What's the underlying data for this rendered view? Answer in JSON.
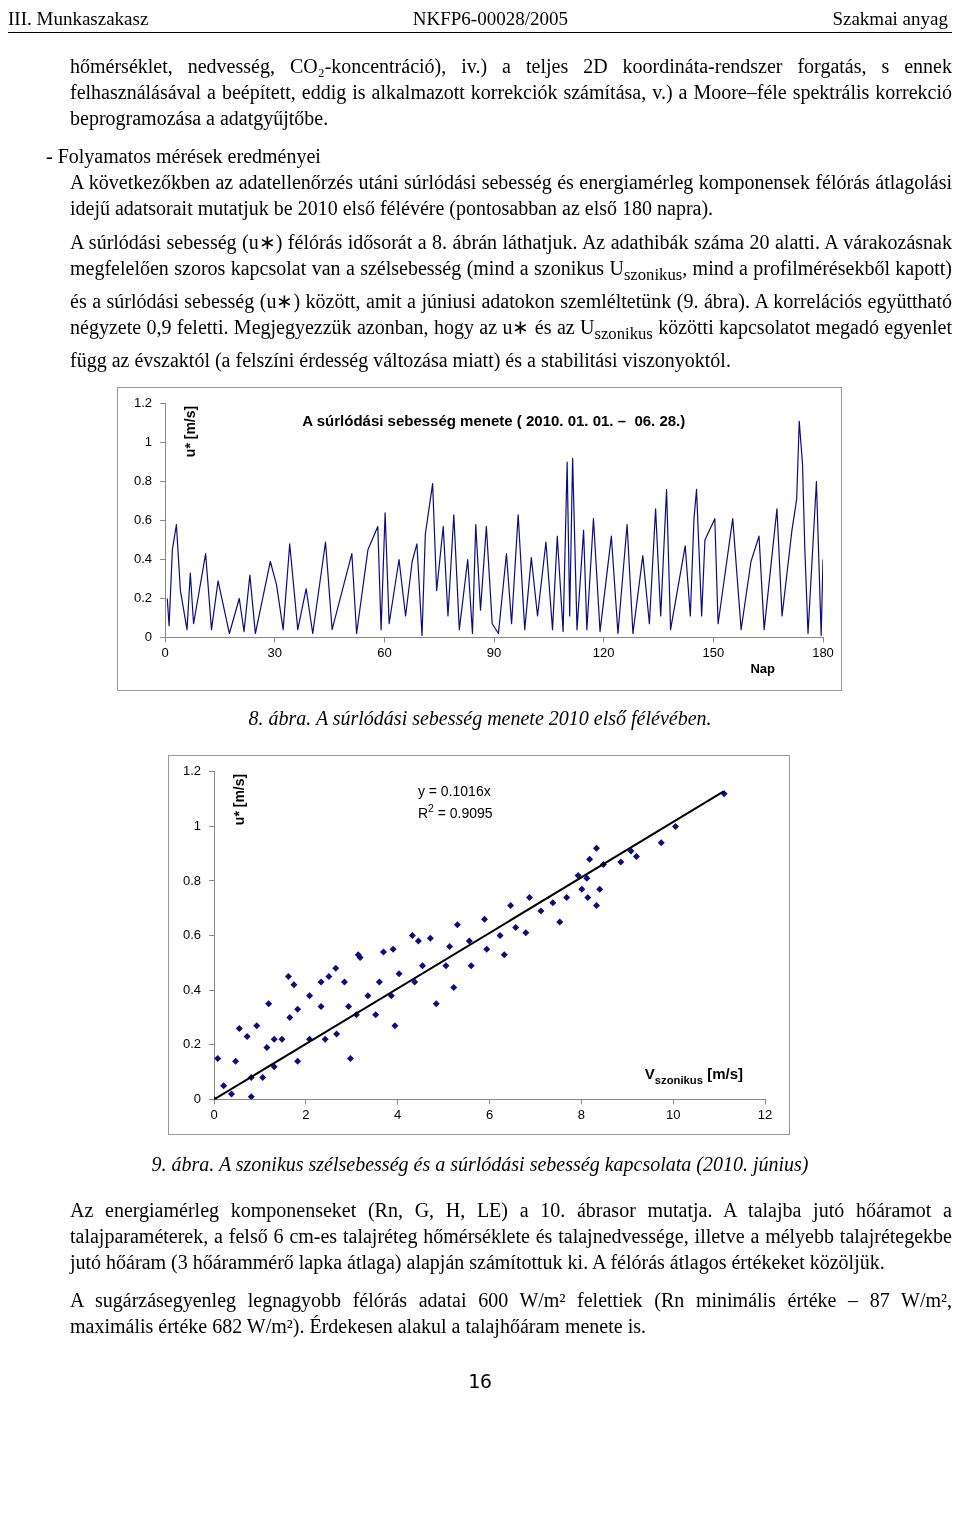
{
  "chart_data": [
    {
      "type": "line",
      "title": "A súrlódási sebesség menete ( 2010. 01. 01. –  06. 28.)",
      "xlabel": "Nap",
      "ylabel": "u* [m/s]",
      "xlim": [
        0,
        180
      ],
      "xticks": [
        0,
        30,
        60,
        90,
        120,
        150,
        180
      ],
      "ylim": [
        0,
        1.2
      ],
      "yticks": [
        0,
        0.2,
        0.4,
        0.6,
        0.8,
        1,
        1.2
      ],
      "grid": false,
      "legend": false,
      "marker": "none",
      "series": [
        {
          "color": "#0c0c80",
          "x": [
            0.6,
            1.1,
            2.0,
            3.1,
            4.2,
            6,
            6.9,
            7.8,
            11.1,
            12.7,
            14.5,
            17.6,
            20.3,
            21.6,
            23.2,
            24.7,
            28.8,
            30.5,
            32.3,
            34.1,
            36.3,
            38.6,
            40.4,
            43.9,
            45.7,
            51.1,
            52.4,
            55.5,
            58.2,
            59.1,
            60.2,
            61.3,
            64.0,
            65.8,
            67.6,
            68.9,
            70.3,
            71.2,
            73.2,
            74.3,
            76.1,
            77.4,
            79.0,
            80.5,
            82.8,
            84.1,
            85.0,
            86.3,
            87.9,
            89.5,
            91.2,
            93.4,
            94.8,
            96.6,
            98.4,
            100.2,
            101.9,
            104.2,
            106,
            107.3,
            108.9,
            110.0,
            110.7,
            111.5,
            112.7,
            114.5,
            115.4,
            117.2,
            119,
            122.1,
            123.9,
            126.4,
            128,
            130.7,
            132.5,
            134.2,
            135.6,
            137.2,
            138.3,
            142.3,
            143.7,
            144.7,
            145.4,
            146.8,
            147.7,
            150.4,
            151.3,
            155.3,
            157.6,
            160.3,
            162.5,
            163.9,
            167.4,
            168.8,
            171.5,
            172.8,
            173.5,
            174.4,
            175,
            175.9,
            178.2,
            179.5,
            180
          ],
          "values": [
            0.2,
            0.06,
            0.45,
            0.58,
            0.24,
            0.04,
            0.33,
            0.07,
            0.43,
            0.04,
            0.29,
            0.02,
            0.2,
            0.03,
            0.32,
            0.02,
            0.39,
            0.27,
            0.04,
            0.48,
            0.04,
            0.25,
            0.02,
            0.49,
            0.04,
            0.43,
            0.02,
            0.45,
            0.57,
            0.04,
            0.64,
            0.07,
            0.4,
            0.11,
            0.39,
            0.48,
            0.01,
            0.53,
            0.79,
            0.24,
            0.57,
            0.11,
            0.63,
            0.04,
            0.4,
            0.02,
            0.58,
            0.14,
            0.57,
            0.07,
            0.02,
            0.43,
            0.07,
            0.63,
            0.04,
            0.41,
            0.11,
            0.49,
            0.04,
            0.52,
            0.03,
            0.9,
            0.11,
            0.92,
            0.04,
            0.55,
            0.04,
            0.61,
            0.03,
            0.52,
            0.02,
            0.58,
            0.02,
            0.42,
            0.07,
            0.66,
            0.11,
            0.76,
            0.04,
            0.47,
            0.11,
            0.61,
            0.76,
            0.11,
            0.5,
            0.61,
            0.07,
            0.61,
            0.04,
            0.39,
            0.52,
            0.04,
            0.66,
            0.11,
            0.55,
            0.71,
            1.11,
            0.89,
            0.47,
            0.02,
            0.8,
            0.01,
            0.4
          ]
        }
      ],
      "annotations": [
        "III. Munkaszakasz",
        "NKFP6-00028/2005",
        "Szakmai anyag",
        "hőmérséklet, nedvesség, CO₂-koncentráció), iv.) a teljes 2D koordináta-rendszer forgatás, s ennek felhasználásával a beépített, eddig is alkalmazott korrekciók számítása, v.) a Moore–féle spektrális korrekció beprogramozása a adatgyűjtőbe.",
        "- Folyamatos mérések eredményei",
        "A következőkben az adatellenőrzés utáni súrlódási sebesség és energiamérleg komponensek félórás átlagolási idejű adatsorait mutatjuk be 2010 első félévére (pontosabban az első 180 napra).",
        "A súrlódási sebesség (u∗) félórás idősorát a 8. ábrán láthatjuk. Az adathibák száma 20 alatti. A várakozásnak megfelelően szoros kapcsolat van a szélsebesség (mind a szonikus U$_{szonikus}$, mind a profilmérésekből kapott) és a súrlódási sebesség (u∗) között, amit a júniusi adatokon szemléltetünk (9. ábra). A korrelációs együttható négyzete 0,9 feletti. Megjegyezzük azonban, hogy az u∗ és az U$_{szonikus}$ közötti kapcsolatot megadó egyenlet függ az évszaktól (a felszíni érdesség változása miatt) és a stabilitási viszonyoktól.",
        "8. ábra. A súrlódási sebesség menete 2010 első félévében."
      ]
    },
    {
      "type": "scatter",
      "xlabel": "V$_{szonikus}$ [m/s]",
      "ylabel": "u* [m/s]",
      "xlim": [
        0,
        12
      ],
      "xticks": [
        0,
        2,
        4,
        6,
        8,
        10,
        12
      ],
      "ylim": [
        0,
        1.2
      ],
      "yticks": [
        0,
        0.2,
        0.4,
        0.6,
        0.8,
        1,
        1.2
      ],
      "grid": false,
      "legend": false,
      "series": [
        {
          "type": "scatter",
          "color": "#0c0c80",
          "marker": "diamond",
          "x": [
            0,
            0.08,
            0.21,
            0.38,
            0.55,
            0.47,
            0.81,
            0.81,
            0.72,
            0.93,
            1.19,
            1.15,
            1.06,
            1.31,
            1.48,
            1.62,
            1.74,
            1.65,
            1.82,
            1.82,
            2.08,
            2.08,
            2.33,
            2.5,
            2.65,
            2.42,
            2.67,
            2.84,
            2.97,
            3.14,
            3.1,
            3.35,
            3.52,
            3.69,
            3.6,
            3.9,
            3.94,
            4.03,
            4.32,
            4.45,
            4.37,
            4.54,
            4.71,
            4.84,
            5.05,
            5.22,
            5.13,
            5.3,
            5.56,
            5.6,
            5.89,
            5.94,
            6.23,
            6.32,
            6.46,
            6.57,
            6.79,
            6.87,
            7.12,
            7.53,
            7.38,
            7.68,
            7.93,
            8.01,
            8.12,
            8.14,
            8.33,
            8.33,
            8.4,
            8.18,
            8.48,
            8.86,
            9.08,
            9.2,
            9.74,
            10.05,
            11.11,
            2.93,
            2.33,
            3.86,
            1.31,
            3.18
          ],
          "values": [
            0,
            0.15,
            0.05,
            0.02,
            0.26,
            0.14,
            0.08,
            0.01,
            0.23,
            0.27,
            0.35,
            0.19,
            0.08,
            0.12,
            0.22,
            0.45,
            0.42,
            0.3,
            0.14,
            0.33,
            0.22,
            0.38,
            0.34,
            0.45,
            0.48,
            0.22,
            0.24,
            0.43,
            0.15,
            0.53,
            0.31,
            0.38,
            0.31,
            0.54,
            0.43,
            0.55,
            0.27,
            0.46,
            0.6,
            0.58,
            0.43,
            0.49,
            0.59,
            0.35,
            0.49,
            0.41,
            0.56,
            0.64,
            0.58,
            0.49,
            0.66,
            0.55,
            0.6,
            0.53,
            0.71,
            0.63,
            0.61,
            0.74,
            0.69,
            0.65,
            0.72,
            0.74,
            0.82,
            0.77,
            0.81,
            0.74,
            0.71,
            0.92,
            0.77,
            0.88,
            0.86,
            0.87,
            0.91,
            0.89,
            0.94,
            1.0,
            1.12,
            0.34,
            0.43,
            0.38,
            0.22,
            0.52
          ]
        },
        {
          "type": "line",
          "color": "#000000",
          "marker": "none",
          "line_style": "solid",
          "x": [
            0,
            11.1
          ],
          "values": [
            0,
            1.128
          ]
        }
      ],
      "annotations": [
        "y = 0.1016x",
        "R$^{2}$ = 0.9095",
        "9. ábra. A szonikus szélsebesség és a súrlódási sebesség kapcsolata (2010. június)",
        "Az energiamérleg komponenseket (Rn, G, H, LE) a 10. ábrasor mutatja. A talajba jutó hőáramot a talajparaméterek, a felső 6 cm-es talajréteg hőmérséklete és talajnedvessége, illetve a mélyebb talajrétegekbe jutó hőáram (3 hőárammérő lapka átlaga) alapján számítottuk ki. A félórás átlagos értékeket közöljük.",
        "A sugárzásegyenleg legnagyobb félórás adatai 600 W/m² felettiek (Rn minimális értéke – 87 W/m², maximális értéke 682 W/m²). Érdekesen alakul a talajhőáram menete is.",
        "16"
      ]
    }
  ]
}
